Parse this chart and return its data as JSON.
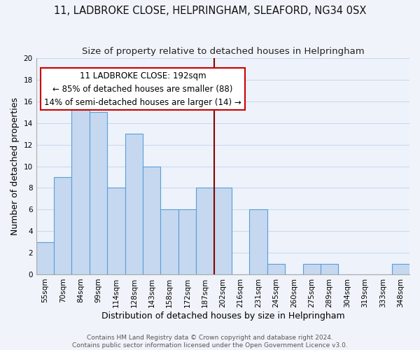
{
  "title": "11, LADBROKE CLOSE, HELPRINGHAM, SLEAFORD, NG34 0SX",
  "subtitle": "Size of property relative to detached houses in Helpringham",
  "xlabel": "Distribution of detached houses by size in Helpringham",
  "ylabel": "Number of detached properties",
  "bin_labels": [
    "55sqm",
    "70sqm",
    "84sqm",
    "99sqm",
    "114sqm",
    "128sqm",
    "143sqm",
    "158sqm",
    "172sqm",
    "187sqm",
    "202sqm",
    "216sqm",
    "231sqm",
    "245sqm",
    "260sqm",
    "275sqm",
    "289sqm",
    "304sqm",
    "319sqm",
    "333sqm",
    "348sqm"
  ],
  "bar_heights": [
    3,
    9,
    16,
    15,
    8,
    13,
    10,
    6,
    6,
    8,
    8,
    0,
    6,
    1,
    0,
    1,
    1,
    0,
    0,
    0,
    1
  ],
  "bar_color": "#c5d8f0",
  "bar_edge_color": "#5a9fd4",
  "vline_x_index": 9.5,
  "vline_color": "#8b0000",
  "annotation_line1": "11 LADBROKE CLOSE: 192sqm",
  "annotation_line2": "← 85% of detached houses are smaller (88)",
  "annotation_line3": "14% of semi-detached houses are larger (14) →",
  "annotation_box_edge_color": "#cc0000",
  "annotation_box_face_color": "#ffffff",
  "ylim": [
    0,
    20
  ],
  "yticks": [
    0,
    2,
    4,
    6,
    8,
    10,
    12,
    14,
    16,
    18,
    20
  ],
  "footer_line1": "Contains HM Land Registry data © Crown copyright and database right 2024.",
  "footer_line2": "Contains public sector information licensed under the Open Government Licence v3.0.",
  "bg_color": "#f0f4fa",
  "plot_bg_color": "#edf2fb",
  "grid_color": "#c8d8ec",
  "title_fontsize": 10.5,
  "subtitle_fontsize": 9.5,
  "axis_label_fontsize": 9,
  "tick_fontsize": 7.5,
  "footer_fontsize": 6.5,
  "annotation_fontsize": 8.5
}
